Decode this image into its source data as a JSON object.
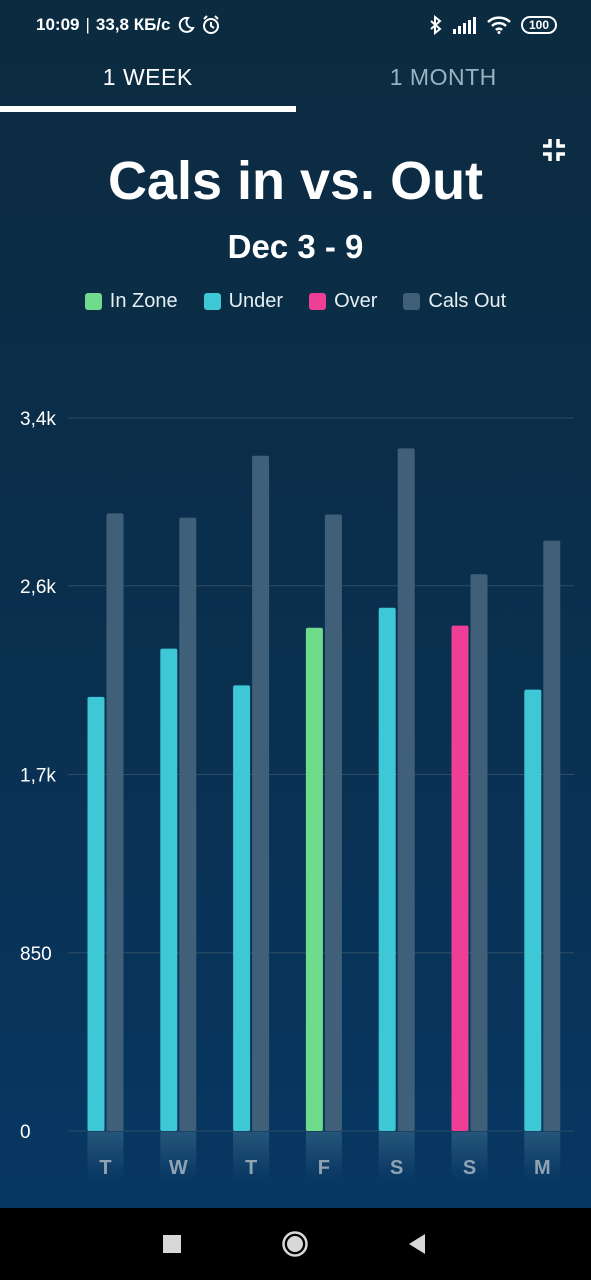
{
  "status_bar": {
    "time": "10:09",
    "separator": "|",
    "speed": "33,8 КБ/с",
    "battery": "100",
    "icons": [
      "moon-icon",
      "alarm-icon",
      "bluetooth-icon",
      "signal-icon",
      "wifi-icon",
      "battery-icon"
    ]
  },
  "tabs": [
    {
      "label": "1 WEEK",
      "active": true
    },
    {
      "label": "1 MONTH",
      "active": false
    }
  ],
  "title": "Cals in vs. Out",
  "subtitle": "Dec 3 - 9",
  "legend": [
    {
      "label": "In Zone",
      "color": "#6fdc8c"
    },
    {
      "label": "Under",
      "color": "#3ec8d6"
    },
    {
      "label": "Over",
      "color": "#ee3e96"
    },
    {
      "label": "Cals Out",
      "color": "#3f6078"
    }
  ],
  "colors": {
    "in_zone": "#6fdc8c",
    "under": "#3ec8d6",
    "over": "#ee3e96",
    "cals_out": "#3f6078",
    "grid": "#2c4d64",
    "tick_label": "#ffffff",
    "day_label": "#8fa3b3"
  },
  "chart_data": {
    "type": "bar",
    "title": "Cals in vs. Out",
    "subtitle": "Dec 3 - 9",
    "categories": [
      "T",
      "W",
      "T",
      "F",
      "S",
      "S",
      "M"
    ],
    "series": [
      {
        "name": "Cals In",
        "values": [
          2070,
          2300,
          2125,
          2400,
          2495,
          2410,
          2105
        ],
        "status": [
          "Under",
          "Under",
          "Under",
          "In Zone",
          "Under",
          "Over",
          "Under"
        ]
      },
      {
        "name": "Cals Out",
        "values": [
          2945,
          2925,
          3220,
          2940,
          3255,
          2655,
          2815
        ]
      }
    ],
    "yticks": [
      0,
      850,
      1700,
      2600,
      3400
    ],
    "ytick_labels": [
      "0",
      "850",
      "1,7k",
      "2,6k",
      "3,4k"
    ],
    "ylim": [
      0,
      3400
    ],
    "grid": true,
    "legend_position": "top-center"
  }
}
